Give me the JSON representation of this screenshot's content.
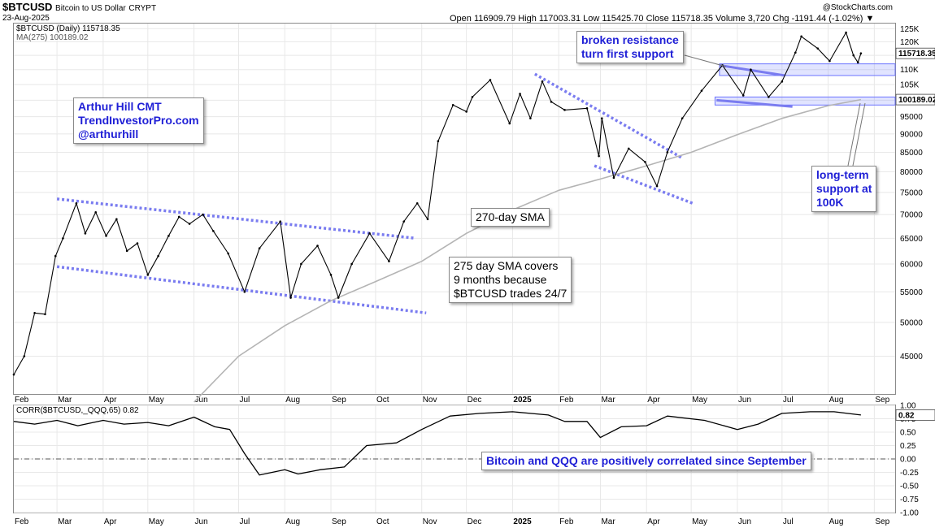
{
  "header": {
    "symbol": "$BTCUSD",
    "description": "Bitcoin to US Dollar",
    "exchange": "CRYPT",
    "date": "23-Aug-2025",
    "ohlc": "Open 116909.79  High 117003.31  Low 115425.70  Close 115718.35  Volume 3,720  Chg -1191.44 (-1.02%) ▼",
    "logo": "@StockCharts.com"
  },
  "legend": {
    "main_symbol": "$BTCUSD (Daily) 115718.35",
    "ma": "MA(275) 100189.02",
    "corr": "CORR($BTCUSD,_QQQ,65) 0.82"
  },
  "annotations": {
    "author": "Arthur Hill CMT\nTrendInvestorPro.com\n@arthurhill",
    "resistance": "broken resistance\nturn first support",
    "sma270": "270-day SMA",
    "sma275": "275 day SMA covers\n9 months because\n$BTCUSD trades 24/7",
    "longterm": "long-term\nsupport at\n100K",
    "correlation": "Bitcoin and QQQ are positively correlated since September"
  },
  "chart_data": [
    {
      "type": "line",
      "title": "$BTCUSD (Daily)",
      "y_scale": "log",
      "ylim": [
        40000,
        127000
      ],
      "y_ticks": [
        {
          "v": 125000,
          "label": "125K"
        },
        {
          "v": 120000,
          "label": "120K"
        },
        {
          "v": 115000,
          "label": "115K"
        },
        {
          "v": 110000,
          "label": "110K"
        },
        {
          "v": 105000,
          "label": "105K"
        },
        {
          "v": 100000,
          "label": "100000"
        },
        {
          "v": 95000,
          "label": "95000"
        },
        {
          "v": 90000,
          "label": "90000"
        },
        {
          "v": 85000,
          "label": "85000"
        },
        {
          "v": 80000,
          "label": "80000"
        },
        {
          "v": 75000,
          "label": "75000"
        },
        {
          "v": 70000,
          "label": "70000"
        },
        {
          "v": 65000,
          "label": "65000"
        },
        {
          "v": 60000,
          "label": "60000"
        },
        {
          "v": 55000,
          "label": "55000"
        },
        {
          "v": 50000,
          "label": "50000"
        },
        {
          "v": 45000,
          "label": "45000"
        }
      ],
      "x_labels": [
        "Feb",
        "Mar",
        "Apr",
        "May",
        "Jun",
        "Jul",
        "Aug",
        "Sep",
        "Oct",
        "Nov",
        "Dec",
        "2025",
        "Feb",
        "Mar",
        "Apr",
        "May",
        "Jun",
        "Jul",
        "Aug",
        "Sep"
      ],
      "x_range": [
        "2024-02-01",
        "2025-09-15"
      ],
      "last_value_tags": [
        {
          "label": "115718.35",
          "v": 115718
        },
        {
          "label": "100189.02",
          "v": 100189
        }
      ],
      "series": [
        {
          "name": "$BTCUSD",
          "color": "#000000",
          "points": [
            [
              "2024-02-01",
              42500
            ],
            [
              "2024-02-08",
              45000
            ],
            [
              "2024-02-15",
              51500
            ],
            [
              "2024-02-22",
              51300
            ],
            [
              "2024-02-29",
              61500
            ],
            [
              "2024-03-05",
              65000
            ],
            [
              "2024-03-14",
              72500
            ],
            [
              "2024-03-20",
              66000
            ],
            [
              "2024-03-27",
              70500
            ],
            [
              "2024-04-03",
              65500
            ],
            [
              "2024-04-10",
              69000
            ],
            [
              "2024-04-17",
              62500
            ],
            [
              "2024-04-24",
              64000
            ],
            [
              "2024-05-01",
              58000
            ],
            [
              "2024-05-08",
              61500
            ],
            [
              "2024-05-15",
              65500
            ],
            [
              "2024-05-22",
              69500
            ],
            [
              "2024-05-29",
              68000
            ],
            [
              "2024-06-07",
              70000
            ],
            [
              "2024-06-14",
              66500
            ],
            [
              "2024-06-24",
              62000
            ],
            [
              "2024-07-05",
              55000
            ],
            [
              "2024-07-15",
              63000
            ],
            [
              "2024-07-29",
              68500
            ],
            [
              "2024-08-05",
              54000
            ],
            [
              "2024-08-12",
              60000
            ],
            [
              "2024-08-23",
              63500
            ],
            [
              "2024-09-01",
              58000
            ],
            [
              "2024-09-06",
              54000
            ],
            [
              "2024-09-15",
              60000
            ],
            [
              "2024-09-27",
              66000
            ],
            [
              "2024-10-10",
              60500
            ],
            [
              "2024-10-20",
              68500
            ],
            [
              "2024-10-29",
              72500
            ],
            [
              "2024-11-05",
              69000
            ],
            [
              "2024-11-12",
              88000
            ],
            [
              "2024-11-22",
              98500
            ],
            [
              "2024-12-01",
              96500
            ],
            [
              "2024-12-05",
              101000
            ],
            [
              "2024-12-17",
              106500
            ],
            [
              "2024-12-30",
              93000
            ],
            [
              "2025-01-06",
              102000
            ],
            [
              "2025-01-13",
              94500
            ],
            [
              "2025-01-21",
              106000
            ],
            [
              "2025-01-27",
              99500
            ],
            [
              "2025-02-05",
              97000
            ],
            [
              "2025-02-20",
              97500
            ],
            [
              "2025-02-28",
              84000
            ],
            [
              "2025-03-02",
              94500
            ],
            [
              "2025-03-10",
              78500
            ],
            [
              "2025-03-20",
              86000
            ],
            [
              "2025-03-31",
              82500
            ],
            [
              "2025-04-08",
              76500
            ],
            [
              "2025-04-15",
              85000
            ],
            [
              "2025-04-25",
              94500
            ],
            [
              "2025-05-08",
              103000
            ],
            [
              "2025-05-22",
              111500
            ],
            [
              "2025-06-05",
              101500
            ],
            [
              "2025-06-10",
              110000
            ],
            [
              "2025-06-22",
              101000
            ],
            [
              "2025-07-01",
              106000
            ],
            [
              "2025-07-10",
              116000
            ],
            [
              "2025-07-14",
              122000
            ],
            [
              "2025-07-25",
              117500
            ],
            [
              "2025-08-02",
              113000
            ],
            [
              "2025-08-13",
              123500
            ],
            [
              "2025-08-18",
              115000
            ],
            [
              "2025-08-21",
              112500
            ],
            [
              "2025-08-23",
              115718
            ]
          ]
        },
        {
          "name": "MA(275)",
          "color": "#b4b4b4",
          "points": [
            [
              "2024-06-01",
              39000
            ],
            [
              "2024-07-01",
              45000
            ],
            [
              "2024-08-01",
              49500
            ],
            [
              "2024-09-01",
              53500
            ],
            [
              "2024-10-01",
              56800
            ],
            [
              "2024-11-01",
              60500
            ],
            [
              "2024-12-01",
              66000
            ],
            [
              "2025-01-01",
              71000
            ],
            [
              "2025-02-01",
              75500
            ],
            [
              "2025-03-01",
              78200
            ],
            [
              "2025-04-01",
              81500
            ],
            [
              "2025-05-01",
              85000
            ],
            [
              "2025-06-01",
              89800
            ],
            [
              "2025-07-01",
              94500
            ],
            [
              "2025-08-01",
              98300
            ],
            [
              "2025-08-23",
              100189
            ]
          ]
        }
      ]
    },
    {
      "type": "line",
      "title": "CORR($BTCUSD,_QQQ,65)",
      "ylim": [
        -1.0,
        1.0
      ],
      "y_ticks": [
        {
          "v": 1.0,
          "label": "1.00"
        },
        {
          "v": 0.75,
          "label": "0.75"
        },
        {
          "v": 0.5,
          "label": "0.50"
        },
        {
          "v": 0.25,
          "label": "0.25"
        },
        {
          "v": 0.0,
          "label": "0.00"
        },
        {
          "v": -0.25,
          "label": "-0.25"
        },
        {
          "v": -0.5,
          "label": "-0.50"
        },
        {
          "v": -0.75,
          "label": "-0.75"
        },
        {
          "v": -1.0,
          "label": "-1.00"
        }
      ],
      "x_labels": [
        "Feb",
        "Mar",
        "Apr",
        "May",
        "Jun",
        "Jul",
        "Aug",
        "Sep",
        "Oct",
        "Nov",
        "Dec",
        "2025",
        "Feb",
        "Mar",
        "Apr",
        "May",
        "Jun",
        "Jul",
        "Aug",
        "Sep"
      ],
      "last_value_tags": [
        {
          "label": "0.82",
          "v": 0.82
        }
      ],
      "series": [
        {
          "name": "CORR",
          "color": "#000000",
          "points": [
            [
              "2024-02-01",
              0.7
            ],
            [
              "2024-02-15",
              0.65
            ],
            [
              "2024-03-01",
              0.72
            ],
            [
              "2024-03-15",
              0.62
            ],
            [
              "2024-04-01",
              0.72
            ],
            [
              "2024-04-15",
              0.65
            ],
            [
              "2024-05-01",
              0.68
            ],
            [
              "2024-05-15",
              0.62
            ],
            [
              "2024-06-01",
              0.78
            ],
            [
              "2024-06-15",
              0.6
            ],
            [
              "2024-06-25",
              0.55
            ],
            [
              "2024-07-05",
              0.1
            ],
            [
              "2024-07-15",
              -0.3
            ],
            [
              "2024-08-01",
              -0.2
            ],
            [
              "2024-08-10",
              -0.28
            ],
            [
              "2024-08-25",
              -0.2
            ],
            [
              "2024-09-10",
              -0.15
            ],
            [
              "2024-09-25",
              0.25
            ],
            [
              "2024-10-15",
              0.3
            ],
            [
              "2024-11-01",
              0.55
            ],
            [
              "2024-11-20",
              0.8
            ],
            [
              "2024-12-10",
              0.85
            ],
            [
              "2025-01-01",
              0.88
            ],
            [
              "2025-01-25",
              0.82
            ],
            [
              "2025-02-05",
              0.7
            ],
            [
              "2025-02-20",
              0.7
            ],
            [
              "2025-03-01",
              0.4
            ],
            [
              "2025-03-15",
              0.6
            ],
            [
              "2025-04-01",
              0.62
            ],
            [
              "2025-04-15",
              0.8
            ],
            [
              "2025-05-10",
              0.72
            ],
            [
              "2025-06-01",
              0.55
            ],
            [
              "2025-06-15",
              0.65
            ],
            [
              "2025-07-01",
              0.85
            ],
            [
              "2025-07-20",
              0.88
            ],
            [
              "2025-08-05",
              0.88
            ],
            [
              "2025-08-23",
              0.82
            ]
          ]
        }
      ]
    }
  ]
}
